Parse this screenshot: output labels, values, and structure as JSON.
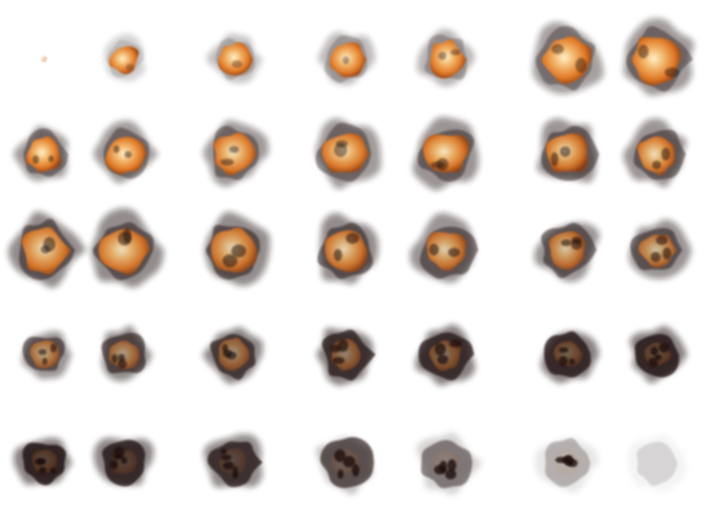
{
  "sprite_sheet": {
    "name": "explosion",
    "rows": 5,
    "columns": 7,
    "frame_count": 35,
    "background": "#ffffff",
    "colors": {
      "core": "#fff0c8",
      "fire_light": "#f2b46a",
      "fire": "#e07a28",
      "fire_dark": "#8a3a10",
      "smoke": "#1a0f0a",
      "ash": "#6a625e"
    },
    "frames": [
      {
        "size": 0.1,
        "fire": 0.5,
        "smoke": 0.0,
        "dark": 0.0
      },
      {
        "size": 0.45,
        "fire": 1.0,
        "smoke": 0.35,
        "dark": 0.0
      },
      {
        "size": 0.5,
        "fire": 1.0,
        "smoke": 0.45,
        "dark": 0.1
      },
      {
        "size": 0.55,
        "fire": 1.0,
        "smoke": 0.5,
        "dark": 0.15
      },
      {
        "size": 0.58,
        "fire": 1.0,
        "smoke": 0.55,
        "dark": 0.2
      },
      {
        "size": 0.75,
        "fire": 1.0,
        "smoke": 0.7,
        "dark": 0.25
      },
      {
        "size": 0.78,
        "fire": 1.0,
        "smoke": 0.75,
        "dark": 0.3
      },
      {
        "size": 0.55,
        "fire": 0.95,
        "smoke": 0.75,
        "dark": 0.3
      },
      {
        "size": 0.6,
        "fire": 0.95,
        "smoke": 0.75,
        "dark": 0.3
      },
      {
        "size": 0.65,
        "fire": 0.9,
        "smoke": 0.75,
        "dark": 0.3
      },
      {
        "size": 0.7,
        "fire": 0.9,
        "smoke": 0.75,
        "dark": 0.3
      },
      {
        "size": 0.7,
        "fire": 0.9,
        "smoke": 0.8,
        "dark": 0.35
      },
      {
        "size": 0.68,
        "fire": 0.85,
        "smoke": 0.8,
        "dark": 0.4
      },
      {
        "size": 0.65,
        "fire": 0.85,
        "smoke": 0.8,
        "dark": 0.4
      },
      {
        "size": 0.75,
        "fire": 0.85,
        "smoke": 0.85,
        "dark": 0.4
      },
      {
        "size": 0.75,
        "fire": 0.85,
        "smoke": 0.85,
        "dark": 0.4
      },
      {
        "size": 0.72,
        "fire": 0.8,
        "smoke": 0.85,
        "dark": 0.45
      },
      {
        "size": 0.7,
        "fire": 0.8,
        "smoke": 0.85,
        "dark": 0.45
      },
      {
        "size": 0.68,
        "fire": 0.75,
        "smoke": 0.8,
        "dark": 0.45
      },
      {
        "size": 0.66,
        "fire": 0.7,
        "smoke": 0.8,
        "dark": 0.5
      },
      {
        "size": 0.6,
        "fire": 0.65,
        "smoke": 0.8,
        "dark": 0.5
      },
      {
        "size": 0.5,
        "fire": 0.55,
        "smoke": 0.8,
        "dark": 0.55
      },
      {
        "size": 0.55,
        "fire": 0.5,
        "smoke": 0.85,
        "dark": 0.6
      },
      {
        "size": 0.6,
        "fire": 0.45,
        "smoke": 0.9,
        "dark": 0.65
      },
      {
        "size": 0.62,
        "fire": 0.4,
        "smoke": 0.95,
        "dark": 0.7
      },
      {
        "size": 0.62,
        "fire": 0.35,
        "smoke": 0.95,
        "dark": 0.75
      },
      {
        "size": 0.55,
        "fire": 0.25,
        "smoke": 0.95,
        "dark": 0.8
      },
      {
        "size": 0.55,
        "fire": 0.2,
        "smoke": 0.95,
        "dark": 0.85
      },
      {
        "size": 0.55,
        "fire": 0.15,
        "smoke": 0.95,
        "dark": 0.9
      },
      {
        "size": 0.58,
        "fire": 0.12,
        "smoke": 0.9,
        "dark": 0.9
      },
      {
        "size": 0.6,
        "fire": 0.1,
        "smoke": 0.85,
        "dark": 0.9
      },
      {
        "size": 0.62,
        "fire": 0.08,
        "smoke": 0.75,
        "dark": 0.9
      },
      {
        "size": 0.62,
        "fire": 0.05,
        "smoke": 0.55,
        "dark": 0.9
      },
      {
        "size": 0.58,
        "fire": 0.03,
        "smoke": 0.3,
        "dark": 0.9
      },
      {
        "size": 0.55,
        "fire": 0.0,
        "smoke": 0.15,
        "dark": 0.9
      }
    ]
  }
}
